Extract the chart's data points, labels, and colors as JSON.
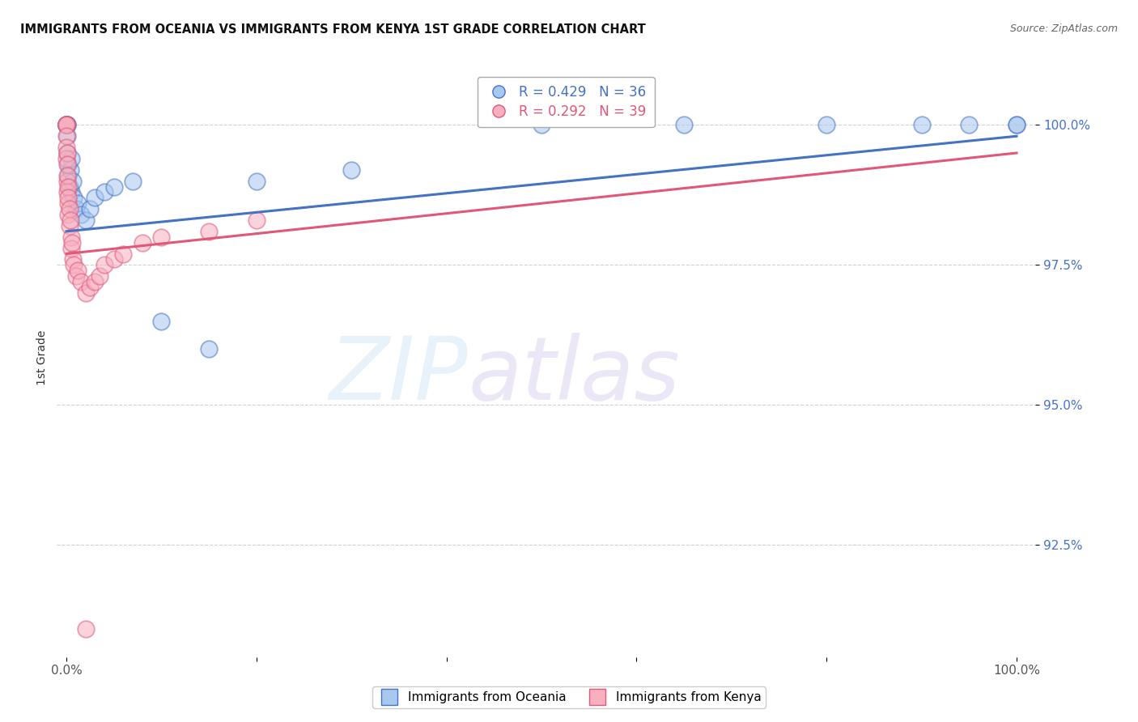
{
  "title": "IMMIGRANTS FROM OCEANIA VS IMMIGRANTS FROM KENYA 1ST GRADE CORRELATION CHART",
  "source": "Source: ZipAtlas.com",
  "ylabel": "1st Grade",
  "xlim": [
    -1.0,
    102.0
  ],
  "ylim": [
    90.5,
    101.2
  ],
  "yticks": [
    92.5,
    95.0,
    97.5,
    100.0
  ],
  "ytick_labels": [
    "92.5%",
    "95.0%",
    "97.5%",
    "100.0%"
  ],
  "xticks": [
    0.0,
    20.0,
    40.0,
    60.0,
    80.0,
    100.0
  ],
  "xtick_labels": [
    "0.0%",
    "",
    "",
    "",
    "",
    "100.0%"
  ],
  "oceania_color": "#a8c8f0",
  "kenya_color": "#f8b0c0",
  "trend_oceania_color": "#4472c4",
  "trend_kenya_color": "#e05878",
  "legend_text_oceania": "R = 0.429   N = 36",
  "legend_text_kenya": "R = 0.292   N = 39",
  "oceania_x": [
    0.0,
    0.0,
    0.0,
    0.0,
    0.05,
    0.05,
    0.1,
    0.1,
    0.15,
    0.2,
    0.3,
    0.4,
    0.5,
    0.5,
    0.7,
    0.8,
    1.0,
    1.2,
    1.5,
    2.0,
    2.5,
    3.0,
    4.0,
    5.0,
    7.0,
    10.0,
    15.0,
    20.0,
    30.0,
    50.0,
    65.0,
    80.0,
    90.0,
    95.0,
    100.0,
    100.0
  ],
  "oceania_y": [
    100.0,
    100.0,
    100.0,
    100.0,
    100.0,
    100.0,
    99.8,
    99.5,
    99.3,
    99.1,
    98.9,
    99.2,
    99.4,
    98.8,
    99.0,
    98.7,
    98.5,
    98.6,
    98.4,
    98.3,
    98.5,
    98.7,
    98.8,
    98.9,
    99.0,
    96.5,
    96.0,
    99.0,
    99.2,
    100.0,
    100.0,
    100.0,
    100.0,
    100.0,
    100.0,
    100.0
  ],
  "kenya_x": [
    0.0,
    0.0,
    0.0,
    0.0,
    0.0,
    0.0,
    0.0,
    0.05,
    0.05,
    0.05,
    0.1,
    0.1,
    0.15,
    0.15,
    0.2,
    0.2,
    0.3,
    0.3,
    0.4,
    0.5,
    0.5,
    0.6,
    0.7,
    0.8,
    1.0,
    1.2,
    1.5,
    2.0,
    2.5,
    3.0,
    3.5,
    4.0,
    5.0,
    6.0,
    8.0,
    10.0,
    15.0,
    20.0,
    2.0
  ],
  "kenya_y": [
    100.0,
    100.0,
    100.0,
    100.0,
    99.8,
    99.6,
    99.4,
    99.5,
    99.3,
    99.0,
    99.1,
    98.8,
    98.9,
    98.6,
    98.7,
    98.4,
    98.5,
    98.2,
    98.3,
    98.0,
    97.8,
    97.9,
    97.6,
    97.5,
    97.3,
    97.4,
    97.2,
    97.0,
    97.1,
    97.2,
    97.3,
    97.5,
    97.6,
    97.7,
    97.9,
    98.0,
    98.1,
    98.3,
    91.0
  ],
  "trend_oceania_x0": 0.0,
  "trend_oceania_y0": 98.1,
  "trend_oceania_x1": 100.0,
  "trend_oceania_y1": 99.8,
  "trend_kenya_x0": 0.0,
  "trend_kenya_y0": 97.7,
  "trend_kenya_x1": 100.0,
  "trend_kenya_y1": 99.5
}
